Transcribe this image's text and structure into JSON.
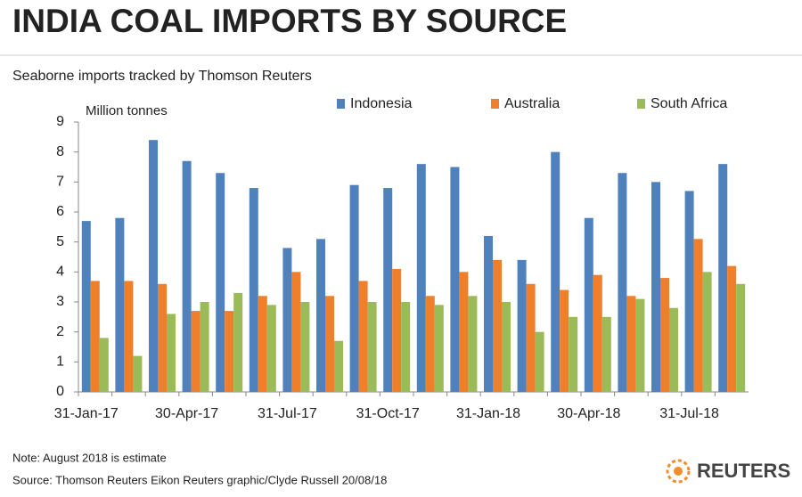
{
  "chart_data": {
    "type": "bar",
    "title": "INDIA COAL IMPORTS BY SOURCE",
    "subtitle": "Seaborne  imports tracked by Thomson Reuters",
    "y_label": "Million tonnes",
    "categories": [
      "31-Jan-17",
      null,
      null,
      "30-Apr-17",
      null,
      null,
      "31-Jul-17",
      null,
      null,
      "31-Oct-17",
      null,
      null,
      "31-Jan-18",
      null,
      null,
      "30-Apr-18",
      null,
      null,
      "31-Jul-18",
      null
    ],
    "series": [
      {
        "name": "Indonesia",
        "color": "#4f81bd",
        "values": [
          5.7,
          5.8,
          8.4,
          7.7,
          7.3,
          6.8,
          4.8,
          5.1,
          6.9,
          6.8,
          7.6,
          7.5,
          5.2,
          4.4,
          8.0,
          5.8,
          7.3,
          7.0,
          6.7,
          7.6
        ]
      },
      {
        "name": "Australia",
        "color": "#f07f2c",
        "values": [
          3.7,
          3.7,
          3.6,
          2.7,
          2.7,
          3.2,
          4.0,
          3.2,
          3.7,
          4.1,
          3.2,
          4.0,
          4.4,
          3.6,
          3.4,
          3.9,
          3.2,
          3.8,
          5.1,
          4.2
        ]
      },
      {
        "name": "South Africa",
        "color": "#9bbb59",
        "values": [
          1.8,
          1.2,
          2.6,
          3.0,
          3.3,
          2.9,
          3.0,
          1.7,
          3.0,
          3.0,
          2.9,
          3.2,
          3.0,
          2.0,
          2.5,
          2.5,
          3.1,
          2.8,
          4.0,
          3.6
        ]
      }
    ],
    "ylim": [
      0,
      9
    ],
    "yticks": [
      0,
      1,
      2,
      3,
      4,
      5,
      6,
      7,
      8,
      9
    ],
    "grid": false,
    "notes": [
      "Note: August 2018 is estimate",
      "Source: Thomson Reuters Eikon      Reuters graphic/Clyde Russell 20/08/18"
    ],
    "brand": "REUTERS"
  }
}
